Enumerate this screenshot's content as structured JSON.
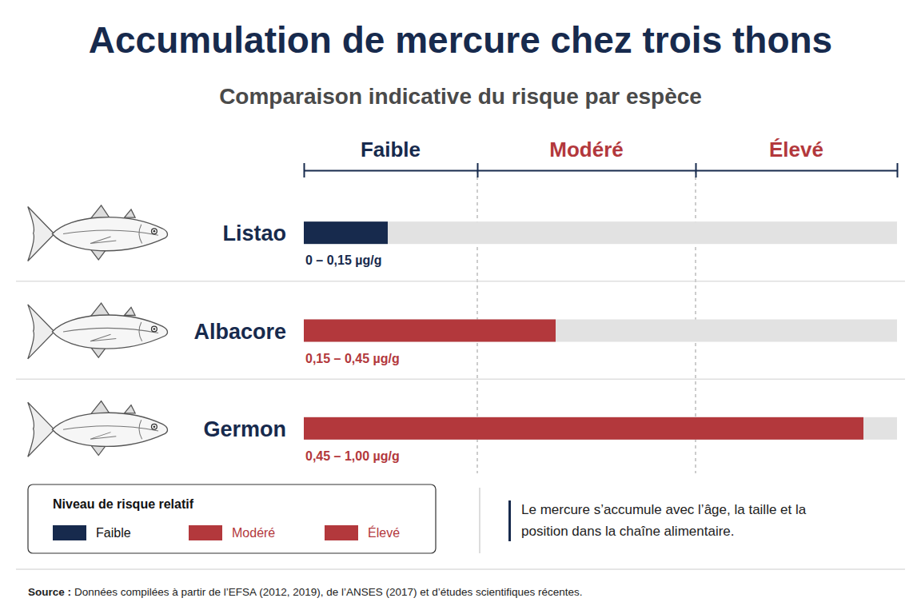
{
  "chart_data": {
    "type": "bar",
    "orientation": "horizontal",
    "title": "Accumulation de mercure chez trois thons",
    "subtitle": "Comparaison indicative du risque par espèce",
    "categories": [
      "Listao",
      "Albacore",
      "Germon"
    ],
    "values": [
      0.15,
      0.45,
      1.0
    ],
    "value_labels": [
      "0 – 0,15 µg/g",
      "0,15 – 0,45 µg/g",
      "0,45 – 1,00 µg/g"
    ],
    "colors": [
      "#172a4d",
      "#b3383c",
      "#b3383c"
    ],
    "data_labels": true,
    "xlim": [
      0,
      1.06
    ],
    "xticks": [
      0,
      0.31,
      0.7,
      1.06
    ],
    "tick_labels": false,
    "grid": true,
    "zones": [
      {
        "label": "Faible",
        "start": 0,
        "end": 0.31,
        "color": "#172a4d"
      },
      {
        "label": "Modéré",
        "start": 0.31,
        "end": 0.7,
        "color": "#b3383c"
      },
      {
        "label": "Élevé",
        "start": 0.7,
        "end": 1.06,
        "color": "#b3383c"
      }
    ],
    "legend": "bottom-left",
    "legend_title": "Niveau de risque relatif",
    "annotation": "Le mercure s’accumule avec l’âge, la taille et la position dans la chaîne alimentaire.",
    "source_label": "Source :",
    "source": "Données compilées à partir de l’EFSA (2012, 2019), de l’ANSES (2017) et d’études scientifiques récentes."
  }
}
